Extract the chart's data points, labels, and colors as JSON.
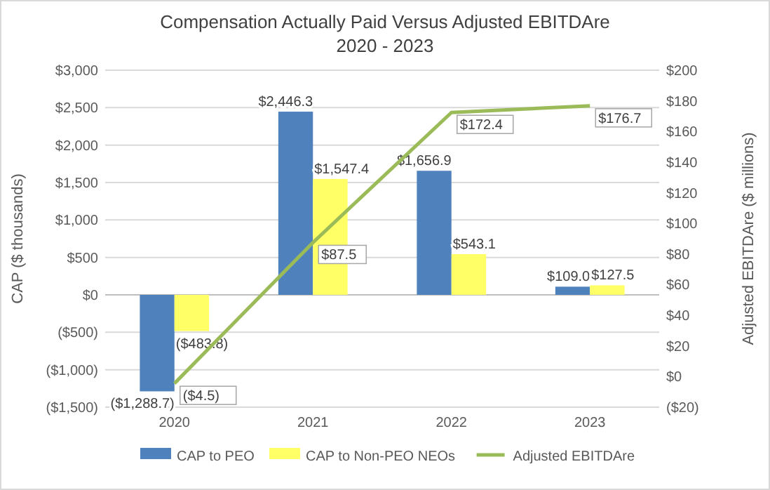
{
  "chart_data": {
    "type": "bar",
    "title": "Compensation Actually Paid Versus Adjusted EBITDAre",
    "subtitle": "2020 - 2023",
    "ylabel": "CAP ($ thousands)",
    "y2label": "Adjusted EBITDAre ($ millions)",
    "categories": [
      "2020",
      "2021",
      "2022",
      "2023"
    ],
    "series": [
      {
        "name": "CAP to PEO",
        "color": "#4f81bd",
        "values": [
          -1288.7,
          2446.3,
          1656.9,
          109.0
        ],
        "value_labels": [
          "($1,288.7)",
          "$2,446.3",
          "$1,656.9",
          "$109.0"
        ]
      },
      {
        "name": "CAP to Non-PEO NEOs",
        "color": "#ffff66",
        "values": [
          -483.8,
          1547.4,
          543.1,
          127.5
        ],
        "value_labels": [
          "($483.8)",
          "$1,547.4",
          "$543.1",
          "$127.5"
        ]
      },
      {
        "name": "Adjusted EBITDAre",
        "type": "line",
        "axis": "y2",
        "color": "#9bbb59",
        "values": [
          -4.5,
          87.5,
          172.4,
          176.7
        ],
        "value_labels": [
          "($4.5)",
          "$87.5",
          "$172.4",
          "$176.7"
        ]
      }
    ],
    "ylim": [
      -1500,
      3000
    ],
    "yticks": [
      {
        "value": -1500,
        "label": "($1,500)"
      },
      {
        "value": -1000,
        "label": "($1,000)"
      },
      {
        "value": -500,
        "label": "($500)"
      },
      {
        "value": 0,
        "label": "$0"
      },
      {
        "value": 500,
        "label": "$500"
      },
      {
        "value": 1000,
        "label": "$1,000"
      },
      {
        "value": 1500,
        "label": "$1,500"
      },
      {
        "value": 2000,
        "label": "$2,000"
      },
      {
        "value": 2500,
        "label": "$2,500"
      },
      {
        "value": 3000,
        "label": "$3,000"
      }
    ],
    "y2lim": [
      -20,
      200
    ],
    "y2ticks": [
      {
        "value": -20,
        "label": "($20)"
      },
      {
        "value": 0,
        "label": "$0"
      },
      {
        "value": 20,
        "label": "$20"
      },
      {
        "value": 40,
        "label": "$40"
      },
      {
        "value": 60,
        "label": "$60"
      },
      {
        "value": 80,
        "label": "$80"
      },
      {
        "value": 100,
        "label": "$100"
      },
      {
        "value": 120,
        "label": "$120"
      },
      {
        "value": 140,
        "label": "$140"
      },
      {
        "value": 160,
        "label": "$160"
      },
      {
        "value": 180,
        "label": "$180"
      },
      {
        "value": 200,
        "label": "$200"
      }
    ],
    "grid": "y",
    "legend": "bottom",
    "line_style": "solid",
    "marker": "none"
  }
}
